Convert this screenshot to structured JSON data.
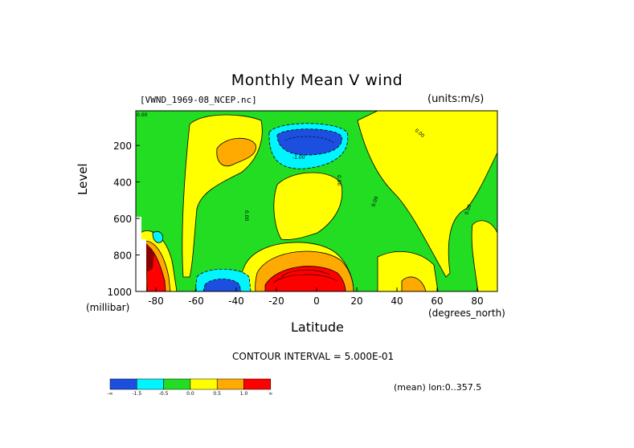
{
  "chart_data": {
    "type": "heatmap",
    "title": "Monthly Mean V wind",
    "dataset": "[VWND_1969-08_NCEP.nc]",
    "units": "(units:m/s)",
    "xlabel": "Latitude",
    "xunit": "(degrees_north)",
    "ylabel": "Level",
    "yunit": "(millibar)",
    "xlim": [
      -90,
      90
    ],
    "ylim": [
      1000,
      10
    ],
    "x_ticks": [
      "-80",
      "-60",
      "-40",
      "-20",
      "0",
      "20",
      "40",
      "60",
      "80"
    ],
    "x_tick_values": [
      -80,
      -60,
      -40,
      -20,
      0,
      20,
      40,
      60,
      80
    ],
    "y_ticks": [
      "200",
      "400",
      "600",
      "800",
      "1000"
    ],
    "y_tick_values": [
      200,
      400,
      600,
      800,
      1000
    ],
    "contour_interval": "CONTOUR INTERVAL = 5.000E-01",
    "mean_note": "(mean) lon:0..357.5",
    "contour_labels": [
      "0.00",
      "0.00",
      "0.00",
      "0.00",
      "0.00",
      "0.00",
      "-1.00"
    ],
    "colorbar": {
      "colors": [
        "#1c4fe0",
        "#00f5ff",
        "#22dd22",
        "#ffff00",
        "#ffaa00",
        "#ff0000"
      ],
      "labels": [
        "-∞",
        "-1.5",
        "-0.5",
        "0.0",
        "0.5",
        "1.0",
        "∞"
      ]
    },
    "regions": [
      {
        "level": "positive",
        "lat": [
          -55,
          -25
        ],
        "lev": [
          150,
          350
        ],
        "value": 0.6
      },
      {
        "level": "strong-negative",
        "lat": [
          -10,
          15
        ],
        "lev": [
          100,
          250
        ],
        "value": -2.0
      },
      {
        "level": "strong-positive",
        "lat": [
          -25,
          15
        ],
        "lev": [
          800,
          1000
        ],
        "value": 1.5
      },
      {
        "level": "strong-negative",
        "lat": [
          -58,
          -45
        ],
        "lev": [
          900,
          1000
        ],
        "value": -2.0
      },
      {
        "level": "strong-positive",
        "lat": [
          -88,
          -78
        ],
        "lev": [
          700,
          1000
        ],
        "value": 2.0
      }
    ]
  }
}
